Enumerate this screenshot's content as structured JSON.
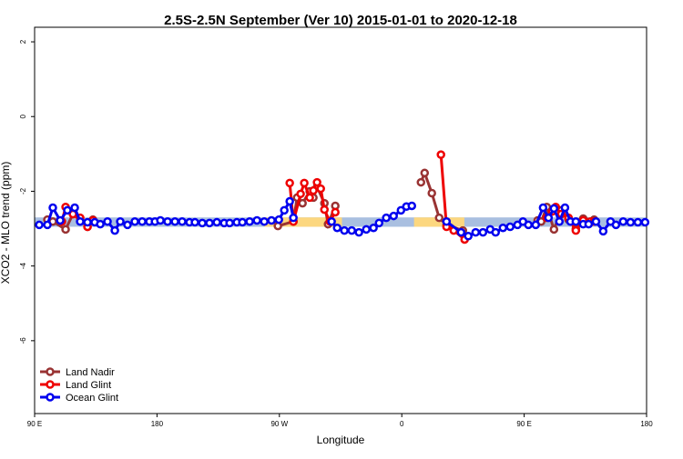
{
  "chart_data": {
    "type": "line",
    "title": "2.5S-2.5N September (Ver 10)   2015-01-01 to 2020-12-18",
    "x_label": "Longitude",
    "y_label": "XCO2 - MLO trend (ppm)",
    "xlim": [
      90,
      540
    ],
    "ylim": [
      -7.95,
      2.39
    ],
    "xticks": [
      {
        "value": 90,
        "label": "90 E"
      },
      180,
      {
        "value": 270,
        "label": "90 W"
      },
      {
        "value": 360,
        "label": "0"
      },
      {
        "value": 450,
        "label": "90 E"
      },
      {
        "value": 540,
        "label": "180"
      }
    ],
    "yticks": [
      2,
      0,
      -2,
      -4,
      -6
    ],
    "legend": "bottom-left",
    "band": {
      "range": [
        -2.95,
        -2.7
      ],
      "ocean_color": "#a9bfe0",
      "land_color": "#fcd77f",
      "land": [
        [
          259,
          316
        ],
        [
          369,
          406
        ]
      ]
    },
    "series": [
      {
        "name": "Land Nadir",
        "color": "#993333",
        "x": [
          99.4,
          103.4,
          112.8,
          118.2,
          128.9,
          132.9,
          null,
          268.9,
          280.3,
          283.0,
          287.0,
          292.3,
          295.0,
          297.7,
          303.1,
          305.8,
          311.1,
          null,
          374.1,
          376.8,
          382.1,
          387.5,
          392.9,
          404.9,
          null,
          459.9,
          462.5,
          466.6,
          471.9,
          477.3,
          482.6,
          488.0,
          493.4,
          501.4
        ],
        "values": [
          -2.76,
          -2.81,
          -3.02,
          -2.61,
          -2.95,
          -2.76,
          null,
          -2.93,
          -2.81,
          -2.17,
          -2.32,
          -2.0,
          -2.17,
          -1.88,
          -2.32,
          -2.88,
          -2.39,
          null,
          -1.76,
          -1.51,
          -2.05,
          -2.71,
          -2.9,
          -3.05,
          null,
          -2.78,
          -2.81,
          -2.42,
          -3.02,
          -2.51,
          -2.76,
          -3.0,
          -2.73,
          -2.76
        ]
      },
      {
        "name": "Land Glint",
        "color": "#ee0000",
        "x": [
          110.1,
          112.8,
          118.2,
          123.5,
          128.9,
          132.9,
          null,
          277.6,
          280.3,
          285.6,
          288.3,
          292.3,
          295.0,
          297.7,
          300.4,
          303.1,
          307.1,
          311.1,
          null,
          388.8,
          392.9,
          398.2,
          406.2,
          null,
          466.6,
          470.6,
          473.2,
          477.3,
          482.6,
          488.0,
          493.4,
          498.7,
          501.4
        ],
        "values": [
          -2.81,
          -2.42,
          -2.61,
          -2.71,
          -2.95,
          -2.78,
          null,
          -1.78,
          -2.81,
          -2.07,
          -1.78,
          -2.17,
          -1.98,
          -1.76,
          -1.93,
          -2.49,
          -2.81,
          -2.56,
          null,
          -1.02,
          -2.95,
          -3.05,
          -3.29,
          null,
          -2.71,
          -2.54,
          -2.42,
          -2.61,
          -2.71,
          -3.05,
          -2.78,
          -2.81,
          -2.81
        ]
      },
      {
        "name": "Ocean Glint",
        "color": "#0000ee",
        "x": [
          93.4,
          99.4,
          103.4,
          108.8,
          114.1,
          119.5,
          123.5,
          128.9,
          134.2,
          138.3,
          143.6,
          149.0,
          153.0,
          158.3,
          163.7,
          169.1,
          174.4,
          178.5,
          182.5,
          187.8,
          193.2,
          198.5,
          203.9,
          207.9,
          213.3,
          218.6,
          224.0,
          229.4,
          233.4,
          238.7,
          242.8,
          248.1,
          253.5,
          258.9,
          264.2,
          269.6,
          273.6,
          277.6,
          280.3,
          null,
          308.4,
          312.5,
          317.8,
          323.2,
          328.5,
          333.9,
          339.2,
          343.3,
          348.6,
          354.0,
          359.4,
          363.4,
          367.4,
          null,
          392.9,
          403.6,
          408.9,
          414.3,
          419.7,
          425.0,
          429.0,
          434.4,
          439.7,
          445.1,
          449.1,
          453.1,
          458.5,
          463.9,
          467.9,
          471.9,
          475.9,
          480.0,
          484.0,
          488.0,
          493.4,
          497.4,
          502.8,
          508.1,
          513.5,
          517.5,
          522.8,
          528.2,
          533.6,
          538.9
        ],
        "values": [
          -2.9,
          -2.9,
          -2.44,
          -2.78,
          -2.51,
          -2.44,
          -2.81,
          -2.83,
          -2.83,
          -2.88,
          -2.81,
          -3.05,
          -2.81,
          -2.9,
          -2.81,
          -2.81,
          -2.81,
          -2.81,
          -2.78,
          -2.81,
          -2.81,
          -2.81,
          -2.83,
          -2.83,
          -2.85,
          -2.85,
          -2.83,
          -2.85,
          -2.85,
          -2.83,
          -2.83,
          -2.81,
          -2.78,
          -2.81,
          -2.78,
          -2.76,
          -2.51,
          -2.27,
          -2.71,
          null,
          -2.81,
          -2.98,
          -3.05,
          -3.05,
          -3.1,
          -3.02,
          -2.98,
          -2.85,
          -2.71,
          -2.66,
          -2.51,
          -2.41,
          -2.39,
          null,
          -2.81,
          -3.1,
          -3.2,
          -3.1,
          -3.1,
          -3.02,
          -3.1,
          -2.98,
          -2.95,
          -2.9,
          -2.81,
          -2.9,
          -2.9,
          -2.44,
          -2.71,
          -2.46,
          -2.81,
          -2.44,
          -2.81,
          -2.81,
          -2.88,
          -2.88,
          -2.81,
          -3.07,
          -2.81,
          -2.9,
          -2.81,
          -2.83,
          -2.83,
          -2.83
        ]
      }
    ]
  }
}
